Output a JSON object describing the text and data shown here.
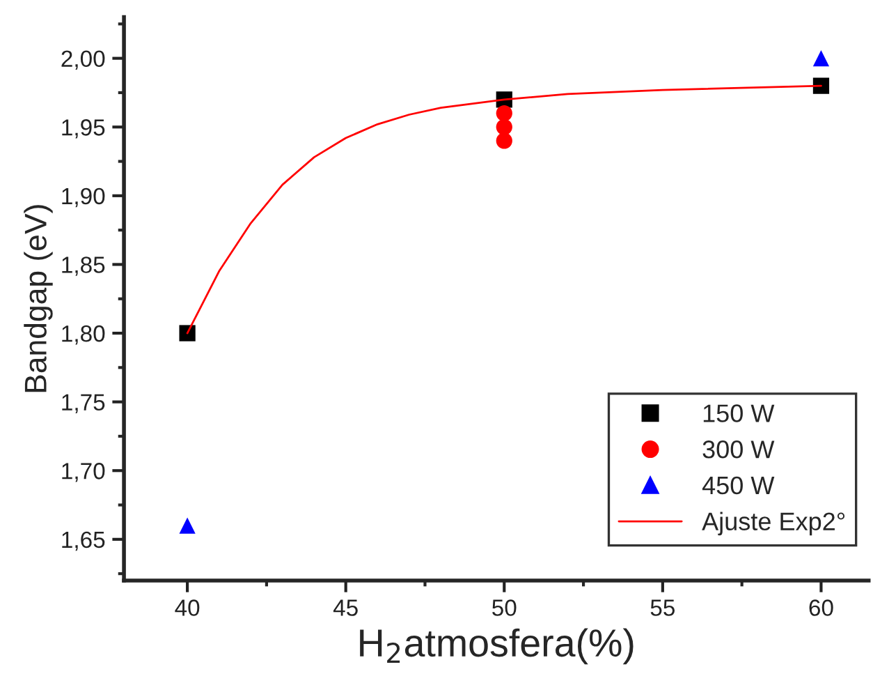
{
  "chart_data": {
    "type": "scatter",
    "xlabel": "H$_{2}$atmosfera(%)",
    "ylabel": "Bandgap (eV)",
    "xlim": [
      38,
      61.5
    ],
    "xticks": [
      40,
      45,
      50,
      55,
      60
    ],
    "ylim": [
      1.62,
      2.03
    ],
    "yticks": [
      {
        "value": 1.65,
        "label": "1,65"
      },
      {
        "value": 1.7,
        "label": "1,70"
      },
      {
        "value": 1.75,
        "label": "1,75"
      },
      {
        "value": 1.8,
        "label": "1,80"
      },
      {
        "value": 1.85,
        "label": "1,85"
      },
      {
        "value": 1.9,
        "label": "1,90"
      },
      {
        "value": 1.95,
        "label": "1,95"
      },
      {
        "value": 2.0,
        "label": "2,00"
      }
    ],
    "grid": false,
    "legend": "bottom right",
    "series": [
      {
        "name": "150 W",
        "marker": "square",
        "color": "#000000",
        "x": [
          40,
          50,
          60
        ],
        "values": [
          1.8,
          1.97,
          1.98
        ]
      },
      {
        "name": "300 W",
        "marker": "circle",
        "color": "#ff0000",
        "x": [
          50,
          50,
          50
        ],
        "values": [
          1.96,
          1.95,
          1.94
        ]
      },
      {
        "name": "450 W",
        "marker": "triangle",
        "color": "#0000ff",
        "x": [
          40,
          60
        ],
        "values": [
          1.66,
          2.0
        ]
      },
      {
        "name": "Ajuste Exp2°",
        "type": "line",
        "marker": "none",
        "line_style": "solid",
        "color": "#ff0000",
        "x": [
          40,
          41,
          42,
          43,
          44,
          45,
          46,
          47,
          48,
          50,
          52,
          55,
          60
        ],
        "values": [
          1.8,
          1.845,
          1.88,
          1.908,
          1.928,
          1.942,
          1.952,
          1.959,
          1.964,
          1.97,
          1.974,
          1.977,
          1.98
        ]
      }
    ]
  }
}
